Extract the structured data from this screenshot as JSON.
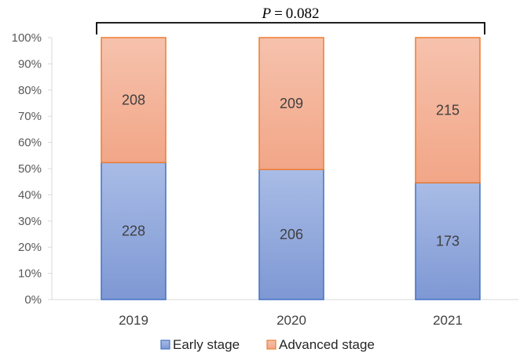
{
  "chart_data": {
    "type": "bar",
    "stacked": true,
    "normalized": true,
    "categories": [
      "2019",
      "2020",
      "2021"
    ],
    "series": [
      {
        "name": "Early stage",
        "values": [
          228,
          206,
          173
        ],
        "color": "#8FA8DC",
        "stroke": "#4472C4"
      },
      {
        "name": "Advanced stage",
        "values": [
          208,
          209,
          215
        ],
        "color": "#F4B39B",
        "stroke": "#ED7D31"
      }
    ],
    "yticks": [
      "0%",
      "10%",
      "20%",
      "30%",
      "40%",
      "50%",
      "60%",
      "70%",
      "80%",
      "90%",
      "100%"
    ],
    "ylim": [
      0,
      100
    ],
    "grid": false,
    "legend_position": "bottom",
    "annotation": {
      "symbol": "P",
      "operator": "=",
      "value": "0.082",
      "bracket_from": "2019",
      "bracket_to": "2021"
    }
  }
}
